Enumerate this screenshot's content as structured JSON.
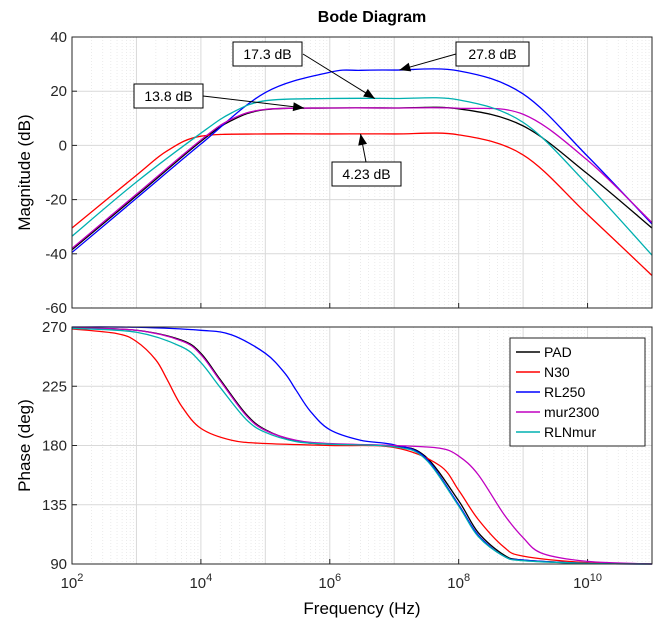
{
  "chart_data": {
    "type": "line",
    "title": "Bode Diagram",
    "xlabel": "Frequency  (Hz)",
    "x_scale": "log",
    "xlim": [
      100,
      100000000000
    ],
    "x_ticks": [
      {
        "value": 100,
        "base": "10",
        "exp": "2"
      },
      {
        "value": 10000,
        "base": "10",
        "exp": "4"
      },
      {
        "value": 1000000,
        "base": "10",
        "exp": "6"
      },
      {
        "value": 100000000,
        "base": "10",
        "exp": "8"
      },
      {
        "value": 10000000000,
        "base": "10",
        "exp": "10"
      }
    ],
    "grid": true,
    "legend_position": "top-right",
    "panels": [
      {
        "ylabel": "Magnitude (dB)",
        "ylim": [
          -60,
          40
        ],
        "y_ticks": [
          "-60",
          "-40",
          "-20",
          "0",
          "20",
          "40"
        ],
        "series": [
          {
            "name": "PAD",
            "color": "#000000",
            "x": [
              100,
              1000,
              10000,
              30000,
              100000,
              1000000,
              10000000,
              100000000,
              1000000000,
              10000000000,
              100000000000
            ],
            "y": [
              -38.5,
              -18.6,
              1.5,
              9.2,
              13.2,
              13.8,
              13.8,
              13.5,
              7.2,
              -10.5,
              -30.5
            ]
          },
          {
            "name": "N30",
            "color": "#ff0000",
            "x": [
              100,
              1000,
              3000,
              10000,
              100000,
              1000000,
              10000000,
              100000000,
              1000000000,
              10000000000,
              100000000000
            ],
            "y": [
              -30.5,
              -11.0,
              -2.0,
              3.4,
              4.23,
              4.23,
              4.23,
              3.9,
              -3.5,
              -25.5,
              -48.0
            ]
          },
          {
            "name": "RL250",
            "color": "#0000ff",
            "x": [
              100,
              1000,
              10000,
              100000,
              1000000,
              3000000,
              10000000,
              100000000,
              1000000000,
              10000000000,
              100000000000
            ],
            "y": [
              -39.5,
              -19.5,
              0.5,
              19.5,
              27.0,
              27.7,
              27.8,
              27.5,
              19.0,
              -4.0,
              -29.0
            ]
          },
          {
            "name": "mur2300",
            "color": "#c000c0",
            "x": [
              100,
              1000,
              10000,
              30000,
              100000,
              1000000,
              10000000,
              100000000,
              1000000000,
              10000000000,
              100000000000
            ],
            "y": [
              -38.0,
              -18.0,
              2.0,
              9.7,
              13.3,
              13.8,
              13.8,
              13.7,
              11.5,
              -5.5,
              -28.5
            ]
          },
          {
            "name": "RLNmur",
            "color": "#00b0b0",
            "x": [
              100,
              1000,
              10000,
              30000,
              100000,
              1000000,
              10000000,
              100000000,
              1000000000,
              10000000000,
              100000000000
            ],
            "y": [
              -33.5,
              -13.5,
              4.5,
              12.0,
              16.5,
              17.3,
              17.3,
              16.8,
              8.5,
              -14.5,
              -40.5
            ]
          }
        ],
        "annotations": [
          {
            "text": "17.3 dB",
            "x": 5000000,
            "y": 17.3
          },
          {
            "text": "27.8 dB",
            "x": 12000000,
            "y": 27.8
          },
          {
            "text": "13.8 dB",
            "x": 400000,
            "y": 13.8
          },
          {
            "text": "4.23 dB",
            "x": 3000000,
            "y": 4.23
          }
        ]
      },
      {
        "ylabel": "Phase (deg)",
        "ylim": [
          90,
          270
        ],
        "y_ticks": [
          "90",
          "135",
          "180",
          "225",
          "270"
        ],
        "series": [
          {
            "name": "PAD",
            "color": "#000000",
            "x": [
              100,
              1000,
              5000,
              10000,
              20000,
              50000,
              100000,
              300000,
              1000000,
              10000000,
              30000000,
              100000000,
              200000000,
              500000000,
              1000000000,
              10000000000,
              100000000000
            ],
            "y": [
              269.5,
              267.5,
              260.0,
              250.0,
              230.0,
              204.0,
              192.0,
              183.5,
              181.0,
              179.5,
              172.0,
              138.0,
              114.0,
              97.0,
              93.0,
              90.5,
              90.0
            ]
          },
          {
            "name": "N30",
            "color": "#ff0000",
            "x": [
              100,
              500,
              1000,
              2000,
              3000,
              5000,
              10000,
              30000,
              100000,
              1000000,
              10000000,
              50000000,
              100000000,
              200000000,
              500000000,
              1000000000,
              10000000000,
              100000000000
            ],
            "y": [
              268.5,
              265.0,
              259.0,
              245.0,
              230.0,
              210.0,
              193.0,
              184.0,
              181.5,
              180.0,
              178.5,
              165.0,
              146.0,
              124.0,
              103.0,
              96.0,
              91.0,
              90.0
            ]
          },
          {
            "name": "RL250",
            "color": "#0000ff",
            "x": [
              100,
              1000,
              10000,
              30000,
              100000,
              200000,
              300000,
              500000,
              1000000,
              3000000,
              10000000,
              30000000,
              100000000,
              200000000,
              500000000,
              1000000000,
              10000000000,
              100000000000
            ],
            "y": [
              270.0,
              269.8,
              267.5,
              264.0,
              250.0,
              235.0,
              222.0,
              206.0,
              192.0,
              184.0,
              180.5,
              171.0,
              135.0,
              112.0,
              96.0,
              93.0,
              90.5,
              90.0
            ]
          },
          {
            "name": "mur2300",
            "color": "#c000c0",
            "x": [
              100,
              1000,
              5000,
              10000,
              20000,
              50000,
              100000,
              300000,
              1000000,
              10000000,
              50000000,
              100000000,
              200000000,
              500000000,
              1000000000,
              2000000000,
              10000000000,
              100000000000
            ],
            "y": [
              269.5,
              267.5,
              259.5,
              249.0,
              229.0,
              203.0,
              191.5,
              184.0,
              181.5,
              180.0,
              178.0,
              172.0,
              158.0,
              128.0,
              110.0,
              98.0,
              92.0,
              90.0
            ]
          },
          {
            "name": "RLNmur",
            "color": "#00b0b0",
            "x": [
              100,
              1000,
              5000,
              10000,
              20000,
              50000,
              100000,
              300000,
              1000000,
              10000000,
              30000000,
              100000000,
              200000000,
              500000000,
              1000000000,
              10000000000,
              100000000000
            ],
            "y": [
              269.0,
              266.0,
              255.0,
              243.0,
              224.0,
              200.0,
              190.0,
              183.0,
              181.0,
              179.0,
              170.0,
              134.0,
              111.0,
              96.0,
              92.5,
              90.5,
              90.0
            ]
          }
        ]
      }
    ]
  }
}
